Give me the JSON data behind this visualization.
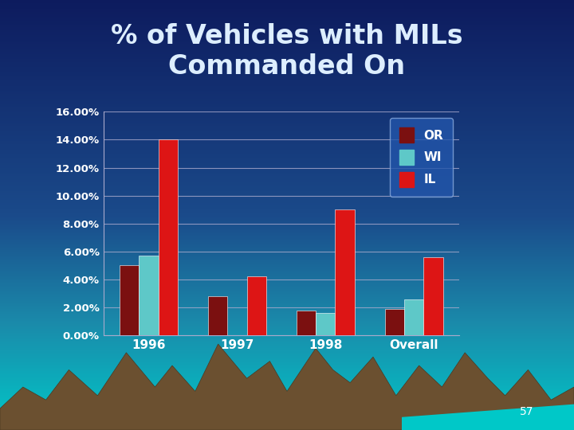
{
  "title": "% of Vehicles with MILs\nCommanded On",
  "categories": [
    "1996",
    "1997",
    "1998",
    "Overall"
  ],
  "series_names": [
    "OR",
    "WI",
    "IL"
  ],
  "series": {
    "OR": [
      0.05,
      0.028,
      0.018,
      0.019
    ],
    "WI": [
      0.057,
      0.0,
      0.016,
      0.026
    ],
    "IL": [
      0.14,
      0.042,
      0.09,
      0.056
    ]
  },
  "colors": {
    "OR": "#7B1010",
    "WI": "#5EC8C8",
    "IL": "#DD1515"
  },
  "ylim": [
    0,
    0.16
  ],
  "yticks": [
    0.0,
    0.02,
    0.04,
    0.06,
    0.08,
    0.1,
    0.12,
    0.14,
    0.16
  ],
  "ytick_labels": [
    "0.00%",
    "2.00%",
    "4.00%",
    "6.00%",
    "8.00%",
    "10.00%",
    "12.00%",
    "14.00%",
    "16.00%"
  ],
  "title_color": "#DDEEFF",
  "tick_color": "#FFFFFF",
  "grid_color": "#AAAACC",
  "legend_bg": "#2255AA",
  "legend_edge_color": "#88AADD",
  "legend_text_color": "#FFFFFF",
  "bar_width": 0.22,
  "title_fontsize": 24,
  "axis_label_fontsize": 11,
  "page_number": "57",
  "bg_dark": "#0D1B5E",
  "bg_mid": "#1A4A8A",
  "bg_light": "#1A8AAA",
  "bg_teal": "#00C8C8",
  "mountain_color": "#6B5030",
  "mountain_shadow": "#4A3820"
}
